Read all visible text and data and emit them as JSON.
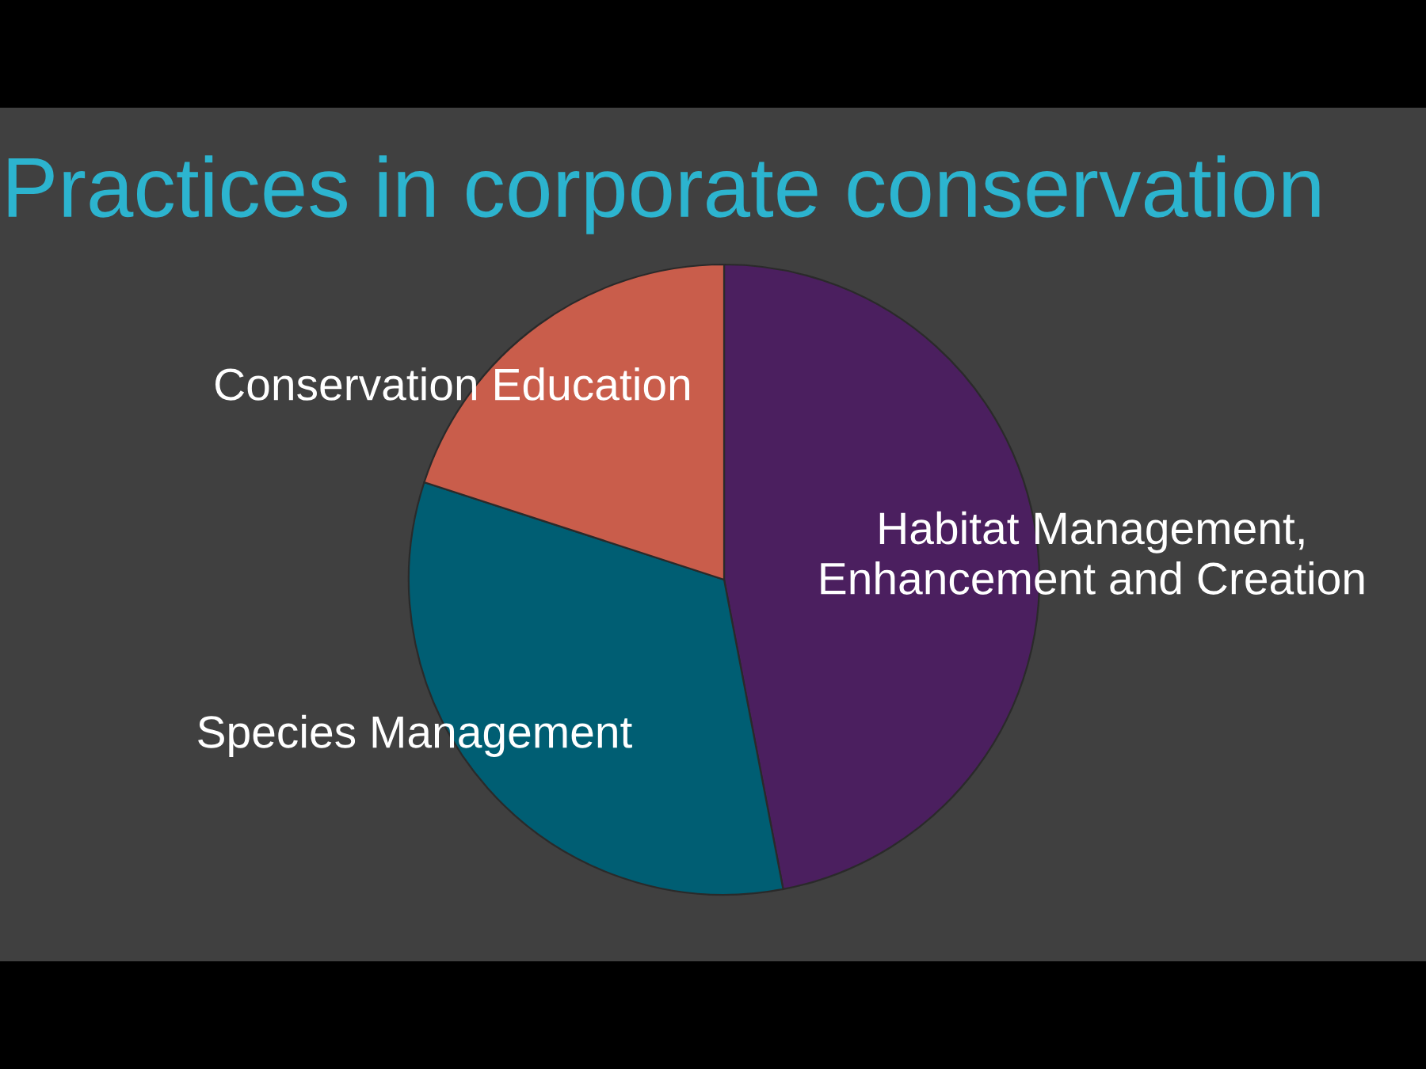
{
  "chart_data": {
    "type": "pie",
    "title": "Practices in corporate conservation",
    "categories": [
      "Habitat Management,\nEnhancement and Creation",
      "Species Management",
      "Conservation Education"
    ],
    "values": [
      47,
      33,
      20
    ],
    "colors": [
      "#4b1f5f",
      "#005e73",
      "#c95d4b"
    ]
  }
}
